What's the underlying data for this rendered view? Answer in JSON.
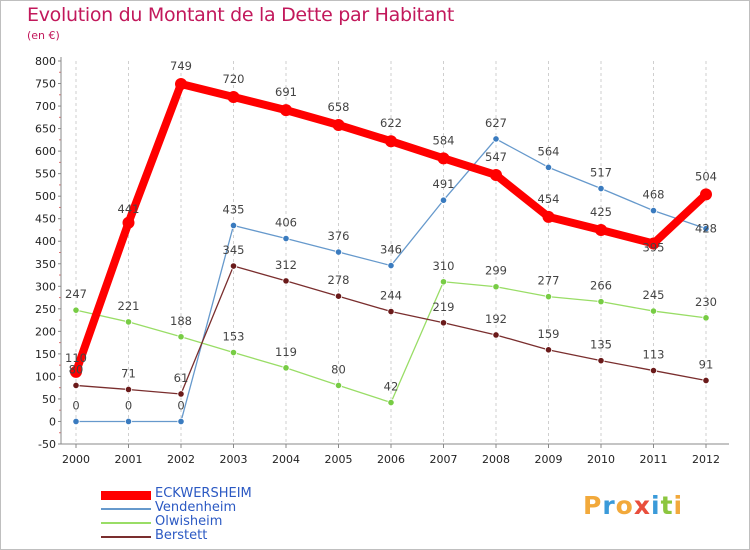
{
  "title": "Evolution du Montant de la Dette par Habitant",
  "subtitle": "(en €)",
  "logo": "Proxiti",
  "chart_data": {
    "type": "line",
    "title": "Evolution du Montant de la Dette par Habitant",
    "ylabel": "(en €)",
    "xlabel": "",
    "x": [
      "2000",
      "2001",
      "2002",
      "2003",
      "2004",
      "2005",
      "2006",
      "2007",
      "2008",
      "2009",
      "2010",
      "2011",
      "2012"
    ],
    "ylim": [
      -50,
      800
    ],
    "yticks": [
      -50,
      0,
      50,
      100,
      150,
      200,
      250,
      300,
      350,
      400,
      450,
      500,
      550,
      600,
      650,
      700,
      750,
      800
    ],
    "grid": "vertical-dashed",
    "legend": "bottom-left",
    "series": [
      {
        "name": "ECKWERSHEIM",
        "color": "#ff0000",
        "thick": true,
        "values": [
          110,
          441,
          749,
          720,
          691,
          658,
          622,
          584,
          547,
          454,
          425,
          395,
          504
        ]
      },
      {
        "name": "Vendenheim",
        "color": "#6699cc",
        "point": "#3a7bbf",
        "values": [
          0,
          0,
          0,
          435,
          406,
          376,
          346,
          491,
          627,
          564,
          517,
          468,
          428
        ]
      },
      {
        "name": "Olwisheim",
        "color": "#99dd66",
        "point": "#77cc44",
        "values": [
          247,
          221,
          188,
          153,
          119,
          80,
          42,
          310,
          299,
          277,
          266,
          245,
          230
        ]
      },
      {
        "name": "Berstett",
        "color": "#7a2e2e",
        "point": "#6a1a1a",
        "values": [
          80,
          71,
          61,
          345,
          312,
          278,
          244,
          219,
          192,
          159,
          135,
          113,
          91
        ]
      }
    ]
  }
}
